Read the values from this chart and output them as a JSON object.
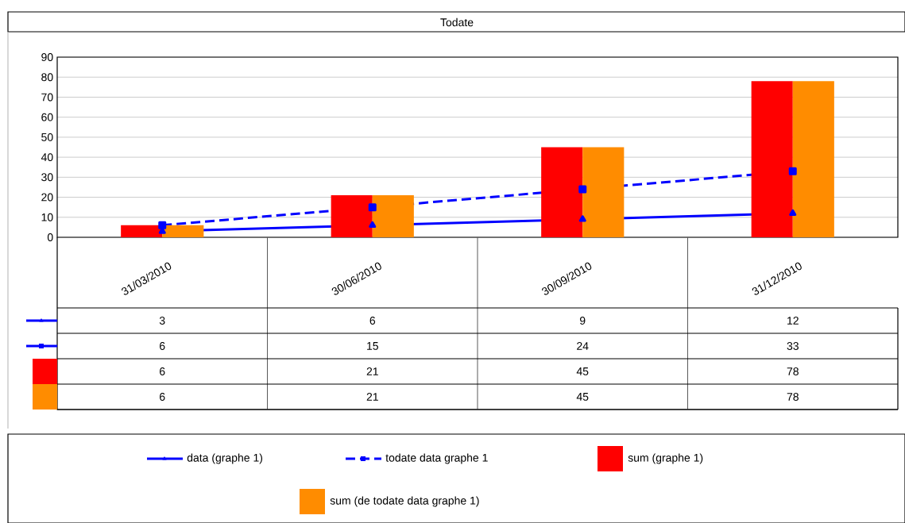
{
  "chart_data": {
    "type": "bar",
    "title": "Todate",
    "categories": [
      "31/03/2010",
      "30/06/2010",
      "30/09/2010",
      "31/12/2010"
    ],
    "series": [
      {
        "name": "data (graphe 1)",
        "type": "line",
        "color": "#0000ff",
        "marker": "triangle",
        "line_style": "solid",
        "values": [
          3,
          6,
          9,
          12
        ]
      },
      {
        "name": "todate data graphe 1",
        "type": "line",
        "color": "#0000ff",
        "marker": "square",
        "line_style": "dashed",
        "values": [
          6,
          15,
          24,
          33
        ]
      },
      {
        "name": "sum (graphe 1)",
        "color": "#ff0000",
        "values": [
          6,
          21,
          45,
          78
        ]
      },
      {
        "name": "sum (de todate data graphe 1)",
        "color": "#ff8c00",
        "values": [
          6,
          21,
          45,
          78
        ]
      }
    ],
    "ylim": [
      0,
      90
    ],
    "yticks": [
      0,
      10,
      20,
      30,
      40,
      50,
      60,
      70,
      80,
      90
    ],
    "grid": "y",
    "legend": "bottom",
    "data_labels": true
  }
}
